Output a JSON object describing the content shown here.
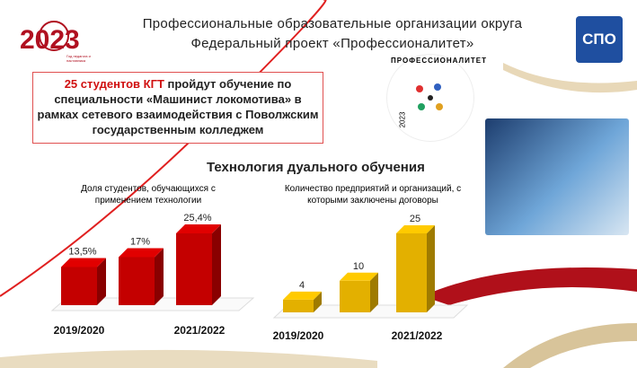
{
  "header": {
    "line1": "Профессиональные образовательные организации округа",
    "line2": "Федеральный проект «Профессионалитет»",
    "badge": "СПО",
    "year_logo": "2023",
    "year_logo_caption": "Год педагога и наставника"
  },
  "notice": {
    "highlight": "25 студентов КГТ",
    "text": " пройдут обучение по специальности «Машинист локомотива» в рамках сетевого взаимодействия с Поволжским государственным колледжем"
  },
  "emblem": {
    "name": "ПРОФЕССИОНАЛИТЕТ",
    "year": "2023"
  },
  "section_title": "Технология дуального обучения",
  "chart_data": [
    {
      "type": "bar3d",
      "title": "Доля студентов, обучающихся с применением технологии",
      "categories": [
        "2019/2020",
        null,
        "2021/2022"
      ],
      "values": [
        13.5,
        17,
        25.4
      ],
      "value_labels": [
        "13,5%",
        "17%",
        "25,4%"
      ],
      "color": "#c40000"
    },
    {
      "type": "bar3d",
      "title": "Количество предприятий и организаций, с которыми заключены договоры",
      "categories": [
        "2019/2020",
        null,
        "2021/2022"
      ],
      "values": [
        4,
        10,
        25
      ],
      "color": "#e3b000"
    }
  ]
}
